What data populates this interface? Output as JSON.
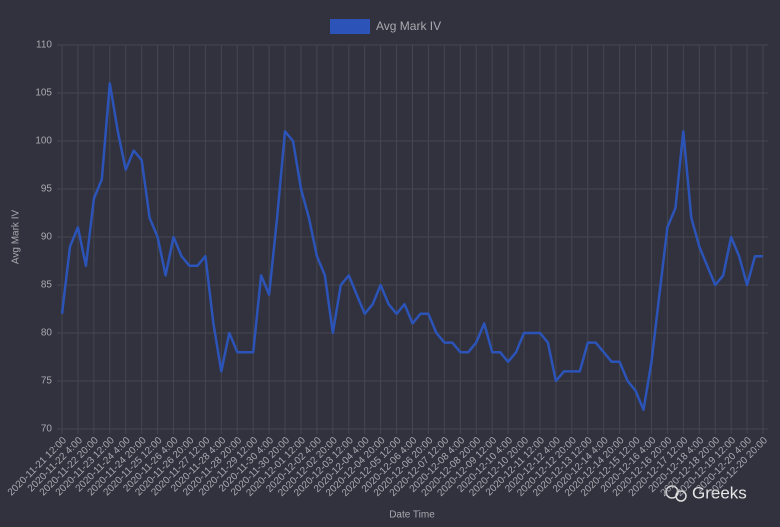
{
  "chart_data": {
    "type": "line",
    "categories": [
      "2020-11-21 12:00",
      null,
      "2020-11-22 4:00",
      null,
      "2020-11-22 20:00",
      null,
      "2020-11-23 12:00",
      null,
      "2020-11-24 4:00",
      null,
      "2020-11-24 20:00",
      null,
      "2020-11-25 12:00",
      null,
      "2020-11-26 4:00",
      null,
      "2020-11-26 20:00",
      null,
      "2020-11-27 12:00",
      null,
      "2020-11-28 4:00",
      null,
      "2020-11-28 20:00",
      null,
      "2020-11-29 12:00",
      null,
      "2020-11-30 4:00",
      null,
      "2020-11-30 20:00",
      null,
      "2020-12-01 12:00",
      null,
      "2020-12-02 4:00",
      null,
      "2020-12-02 20:00",
      null,
      "2020-12-03 12:00",
      null,
      "2020-12-04 4:00",
      null,
      "2020-12-04 20:00",
      null,
      "2020-12-05 12:00",
      null,
      "2020-12-06 4:00",
      null,
      "2020-12-06 20:00",
      null,
      "2020-12-07 12:00",
      null,
      "2020-12-08 4:00",
      null,
      "2020-12-08 20:00",
      null,
      "2020-12-09 12:00",
      null,
      "2020-12-10 4:00",
      null,
      "2020-12-10 20:00",
      null,
      "2020-12-11 12:00",
      null,
      "2020-12-12 4:00",
      null,
      "2020-12-12 20:00",
      null,
      "2020-12-13 12:00",
      null,
      "2020-12-14 4:00",
      null,
      "2020-12-14 20:00",
      null,
      "2020-12-15 12:00",
      null,
      "2020-12-16 4:00",
      null,
      "2020-12-16 20:00",
      null,
      "2020-12-17 12:00",
      null,
      "2020-12-18 4:00",
      null,
      "2020-12-18 20:00",
      null,
      "2020-12-19 12:00",
      null,
      "2020-12-20 4:00",
      null,
      "2020-12-20 20:00"
    ],
    "series": [
      {
        "name": "Avg Mark IV",
        "color": "#2c54b8",
        "values": [
          82,
          89,
          91,
          87,
          94,
          96,
          106,
          101,
          97,
          99,
          98,
          92,
          90,
          86,
          90,
          88,
          87,
          87,
          88,
          81,
          76,
          80,
          78,
          78,
          78,
          86,
          84,
          92,
          101,
          100,
          95,
          92,
          88,
          86,
          80,
          85,
          86,
          84,
          82,
          83,
          85,
          83,
          82,
          83,
          81,
          82,
          82,
          80,
          79,
          79,
          78,
          78,
          79,
          81,
          78,
          78,
          77,
          78,
          80,
          80,
          80,
          79,
          75,
          76,
          76,
          76,
          79,
          79,
          78,
          77,
          77,
          75,
          74,
          72,
          77,
          84,
          91,
          93,
          101,
          92,
          89,
          87,
          85,
          86,
          90,
          88,
          85,
          88,
          88
        ]
      }
    ],
    "ylim": [
      70,
      110
    ],
    "yticks": [
      70,
      75,
      80,
      85,
      90,
      95,
      100,
      105,
      110
    ],
    "xlabel": "Date Time",
    "ylabel": "Avg Mark IV",
    "grid": true,
    "legend": "top"
  },
  "watermark": "Greeks"
}
